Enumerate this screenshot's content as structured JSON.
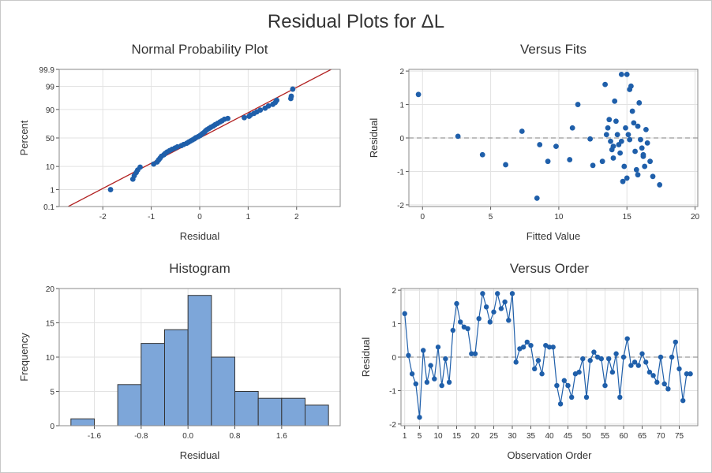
{
  "title": "Residual Plots for ΔL",
  "chart_data": [
    {
      "type": "scatter",
      "title": "Normal Probability Plot",
      "xlabel": "Residual",
      "ylabel": "Percent",
      "x_ticks": [
        -2,
        -1,
        0,
        1,
        2
      ],
      "y_ticks": [
        0.1,
        1,
        10,
        50,
        90,
        99,
        99.9
      ],
      "xlim": [
        -2.9,
        2.9
      ],
      "ylim": [
        0.1,
        99.9
      ],
      "y_scale": "normal-probability",
      "grid": true,
      "fit_line": {
        "color": "#b22222",
        "mean": 0.0,
        "sd": 0.88
      },
      "points": {
        "residual": [
          -1.84,
          -1.38,
          -1.35,
          -1.31,
          -1.28,
          -1.23,
          -0.95,
          -0.88,
          -0.85,
          -0.82,
          -0.79,
          -0.74,
          -0.71,
          -0.67,
          -0.62,
          -0.57,
          -0.51,
          -0.46,
          -0.38,
          -0.33,
          -0.27,
          -0.23,
          -0.19,
          -0.15,
          -0.11,
          -0.08,
          -0.03,
          0.01,
          0.04,
          0.07,
          0.1,
          0.12,
          0.15,
          0.19,
          0.23,
          0.28,
          0.32,
          0.37,
          0.42,
          0.46,
          0.51,
          0.58,
          0.92,
          1.02,
          1.05,
          1.12,
          1.18,
          1.25,
          1.35,
          1.42,
          1.51,
          1.56,
          1.59,
          1.88,
          1.89,
          1.92
        ],
        "percent": [
          1.0,
          3.2,
          4.5,
          6.0,
          7.5,
          9.5,
          12.0,
          14.0,
          16.0,
          18.0,
          20.5,
          22.5,
          24.5,
          26.5,
          28.5,
          30.5,
          32.5,
          34.5,
          36.5,
          38.5,
          40.5,
          42.5,
          44.5,
          46.5,
          48.5,
          50.5,
          52.5,
          54.5,
          56.5,
          58.5,
          60.5,
          62.5,
          64.5,
          66.5,
          68.5,
          70.5,
          72.5,
          74.5,
          76.5,
          78.0,
          80.0,
          81.0,
          82.0,
          83.5,
          85.0,
          86.5,
          88.0,
          89.5,
          91.0,
          92.5,
          93.5,
          94.5,
          95.5,
          96.2,
          97.0,
          98.6
        ]
      }
    },
    {
      "type": "scatter",
      "title": "Versus Fits",
      "xlabel": "Fitted Value",
      "ylabel": "Residual",
      "x_ticks": [
        0,
        5,
        10,
        15,
        20
      ],
      "y_ticks": [
        -2,
        -1,
        0,
        1,
        2
      ],
      "xlim": [
        -1,
        20.2
      ],
      "ylim": [
        -2.05,
        2.05
      ],
      "grid": true,
      "reference_line": 0,
      "points": {
        "fitted": [
          -0.3,
          2.6,
          4.4,
          6.1,
          7.3,
          8.4,
          8.6,
          9.2,
          9.8,
          10.8,
          11.0,
          11.4,
          12.3,
          12.5,
          13.2,
          13.4,
          13.5,
          13.7,
          13.8,
          13.9,
          14.0,
          14.1,
          14.2,
          14.3,
          14.4,
          14.5,
          14.6,
          14.7,
          14.8,
          14.9,
          15.0,
          15.0,
          15.1,
          15.2,
          15.2,
          15.3,
          15.4,
          15.5,
          15.6,
          15.7,
          15.8,
          15.9,
          16.0,
          16.1,
          16.2,
          16.3,
          16.4,
          16.5,
          16.7,
          16.9,
          17.4,
          13.6,
          14.6,
          15.8,
          16.2,
          14.0
        ],
        "residual": [
          1.3,
          0.05,
          -0.5,
          -0.8,
          0.2,
          -1.8,
          -0.2,
          -0.7,
          -0.25,
          -0.65,
          0.3,
          1.0,
          -0.03,
          -0.82,
          -0.7,
          1.6,
          0.1,
          0.55,
          -0.1,
          -0.35,
          -0.6,
          1.1,
          0.5,
          0.1,
          -0.2,
          -0.45,
          1.9,
          -1.3,
          -0.85,
          0.3,
          -1.2,
          1.9,
          0.1,
          -0.05,
          1.45,
          1.55,
          0.8,
          0.45,
          -0.4,
          -0.95,
          0.35,
          1.05,
          -0.05,
          -0.3,
          -0.55,
          -0.85,
          0.25,
          -0.15,
          -0.7,
          -1.15,
          -1.4,
          0.3,
          -0.1,
          -1.1,
          -0.5,
          -0.25
        ]
      }
    },
    {
      "type": "bar",
      "title": "Histogram",
      "xlabel": "Residual",
      "ylabel": "Frequency",
      "x_ticks": [
        -1.6,
        -0.8,
        0.0,
        0.8,
        1.6
      ],
      "y_ticks": [
        0,
        5,
        10,
        15,
        20
      ],
      "bin_width": 0.4,
      "bin_lefts": [
        -2.0,
        -1.6,
        -1.2,
        -0.8,
        -0.4,
        0.0,
        0.4,
        0.8,
        1.2,
        1.6,
        2.0
      ],
      "values": [
        1,
        0,
        6,
        12,
        14,
        19,
        10,
        5,
        4,
        4,
        3
      ],
      "xlim": [
        -2.2,
        2.6
      ],
      "ylim": [
        0,
        20
      ],
      "bar_color": "#7da6d9",
      "grid": true
    },
    {
      "type": "line",
      "title": "Versus Order",
      "xlabel": "Observation Order",
      "ylabel": "Residual",
      "x_ticks": [
        1,
        5,
        10,
        15,
        20,
        25,
        30,
        35,
        40,
        45,
        50,
        55,
        60,
        65,
        70,
        75
      ],
      "y_ticks": [
        -2,
        -1,
        0,
        1,
        2
      ],
      "xlim": [
        0,
        80
      ],
      "ylim": [
        -2.05,
        2.05
      ],
      "grid": true,
      "reference_line": 0,
      "x": [
        1,
        2,
        3,
        4,
        5,
        6,
        7,
        8,
        9,
        10,
        11,
        12,
        13,
        14,
        15,
        16,
        17,
        18,
        19,
        20,
        21,
        22,
        23,
        24,
        25,
        26,
        27,
        28,
        29,
        30,
        31,
        32,
        33,
        34,
        35,
        36,
        37,
        38,
        39,
        40,
        41,
        42,
        43,
        44,
        45,
        46,
        47,
        48,
        49,
        50,
        51,
        52,
        53,
        54,
        55,
        56,
        57,
        58,
        59,
        60,
        61,
        62,
        63,
        64,
        65,
        66,
        67,
        68,
        69,
        70,
        71,
        72,
        73,
        74,
        75,
        76,
        77,
        78
      ],
      "y": [
        1.3,
        0.05,
        -0.5,
        -0.8,
        -1.8,
        0.2,
        -0.75,
        -0.25,
        -0.65,
        0.3,
        -0.85,
        -0.05,
        -0.75,
        0.8,
        1.6,
        1.05,
        0.9,
        0.85,
        0.1,
        0.1,
        1.15,
        1.9,
        1.5,
        1.05,
        1.35,
        1.9,
        1.45,
        1.65,
        1.1,
        1.9,
        -0.15,
        0.25,
        0.3,
        0.45,
        0.35,
        -0.35,
        -0.1,
        -0.5,
        0.35,
        0.3,
        0.3,
        -0.85,
        -1.4,
        -0.7,
        -0.85,
        -1.2,
        -0.5,
        -0.45,
        -0.05,
        -1.2,
        -0.1,
        0.15,
        0.0,
        -0.05,
        -0.85,
        -0.05,
        -0.45,
        0.1,
        -1.2,
        0.0,
        0.55,
        -0.25,
        -0.15,
        -0.25,
        0.1,
        -0.15,
        -0.45,
        -0.55,
        -0.75,
        0.0,
        -0.8,
        -0.95,
        0.0,
        0.45,
        -0.35,
        -1.3,
        -0.5,
        -0.5
      ],
      "line_color": "#1f5faa"
    }
  ]
}
